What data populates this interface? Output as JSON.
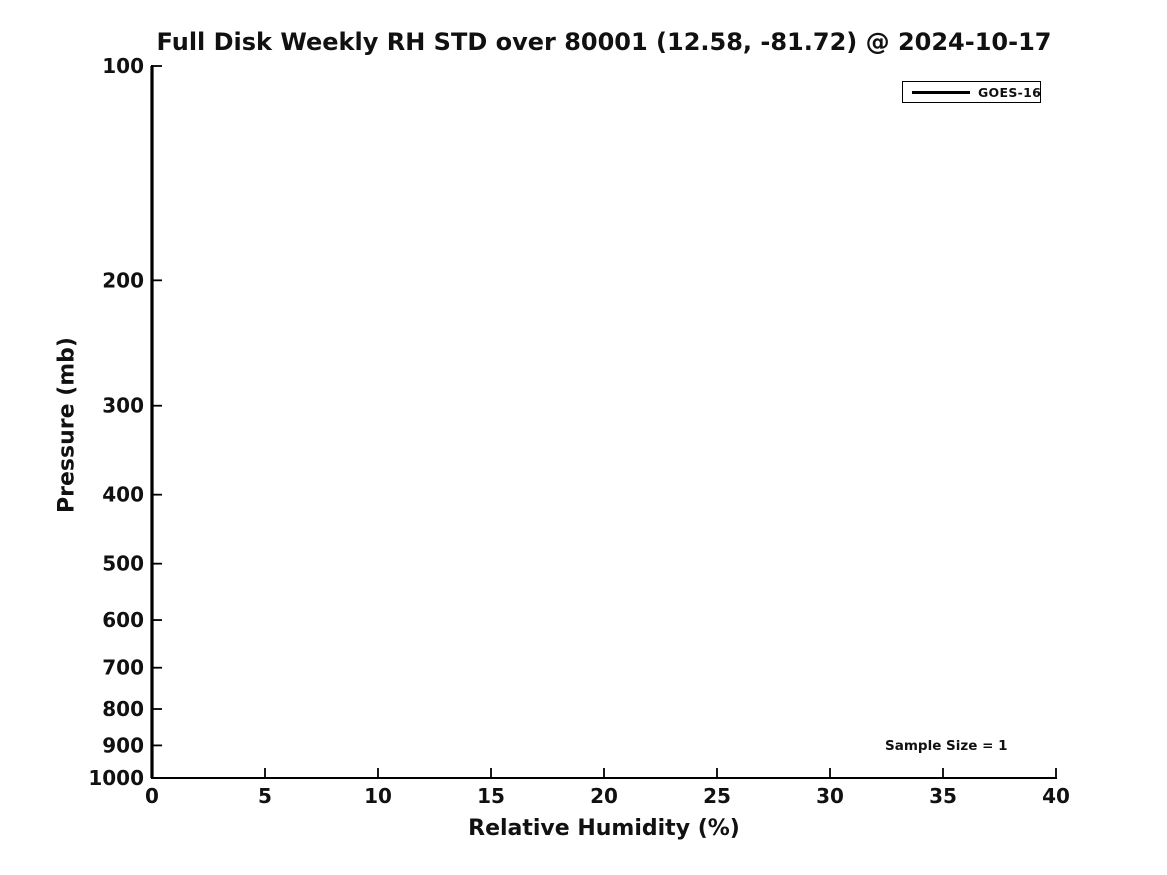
{
  "figure": {
    "background_color": "#ffffff",
    "text_color": "#111111",
    "axis_color": "#000000"
  },
  "chart_data": {
    "type": "line",
    "title": "Full Disk Weekly RH STD over 80001 (12.58, -81.72) @ 2024-10-17",
    "xlabel": "Relative Humidity (%)",
    "ylabel": "Pressure (mb)",
    "xlim": [
      0,
      40
    ],
    "xticks": [
      0,
      5,
      10,
      15,
      20,
      25,
      30,
      35,
      40
    ],
    "yscale": "log",
    "y_axis_inverted": true,
    "ylim_top": 100,
    "ylim_bottom": 1000,
    "yticks": [
      100,
      200,
      300,
      400,
      500,
      600,
      700,
      800,
      900,
      1000
    ],
    "grid": false,
    "legend": {
      "position": "upper-right",
      "entries": [
        {
          "label": "GOES-16",
          "color": "#000000",
          "style": "solid-line"
        }
      ]
    },
    "annotation": {
      "text": "Sample Size = 1"
    },
    "series": [
      {
        "name": "GOES-16",
        "color": "#000000",
        "x_rh_std": [
          0,
          0
        ],
        "y_pressure_mb": [
          100,
          1000
        ]
      }
    ]
  }
}
